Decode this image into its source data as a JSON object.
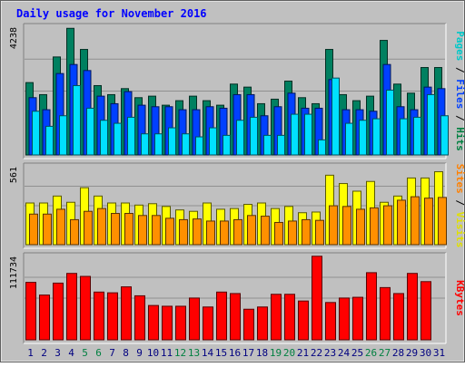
{
  "chart_data": {
    "type": "bar",
    "title": "Daily usage for November 2016",
    "categories": [
      "1",
      "2",
      "3",
      "4",
      "5",
      "6",
      "7",
      "8",
      "9",
      "10",
      "11",
      "12",
      "13",
      "14",
      "15",
      "16",
      "17",
      "18",
      "19",
      "20",
      "21",
      "22",
      "23",
      "24",
      "25",
      "26",
      "27",
      "28",
      "29",
      "30",
      "31"
    ],
    "weekend_days": [
      "5",
      "6",
      "12",
      "13",
      "19",
      "20",
      "26",
      "27"
    ],
    "panels": [
      {
        "name": "top",
        "max_label": "4238",
        "ylim": [
          0,
          4238
        ],
        "right_labels": [
          {
            "text": "Pages",
            "color": "#00c8c8"
          },
          {
            "text": " / ",
            "color": "#000000"
          },
          {
            "text": "Files",
            "color": "#0040ff"
          },
          {
            "text": " / ",
            "color": "#000000"
          },
          {
            "text": "Hits",
            "color": "#008040"
          }
        ],
        "series": [
          {
            "name": "Hits",
            "color": "#008060",
            "values": [
              2400,
              2000,
              3250,
              4200,
              3500,
              2300,
              2000,
              2200,
              1900,
              1950,
              1650,
              1800,
              1950,
              1800,
              1650,
              2350,
              2250,
              1700,
              1850,
              2450,
              1900,
              1700,
              3500,
              2000,
              1800,
              1950,
              3800,
              2350,
              2050,
              2900,
              2900
            ]
          },
          {
            "name": "Files",
            "color": "#0040ff",
            "values": [
              1900,
              1500,
              2700,
              3000,
              2800,
              1950,
              1700,
              2100,
              1650,
              1600,
              1600,
              1500,
              1500,
              1600,
              1550,
              2000,
              2000,
              1300,
              1600,
              2050,
              1550,
              1550,
              2500,
              1500,
              1500,
              1450,
              3000,
              1600,
              1500,
              2250,
              2200
            ]
          },
          {
            "name": "Pages",
            "color": "#00e0ff",
            "values": [
              1450,
              950,
              1300,
              2300,
              1550,
              1150,
              1050,
              1250,
              700,
              700,
              900,
              700,
              600,
              900,
              650,
              1150,
              1250,
              650,
              650,
              1350,
              1350,
              500,
              2550,
              1050,
              1150,
              1200,
              2150,
              1200,
              1250,
              2000,
              1300
            ]
          }
        ]
      },
      {
        "name": "middle",
        "max_label": "561",
        "ylim": [
          0,
          561
        ],
        "right_labels": [
          {
            "text": "Sites",
            "color": "#ff8000"
          },
          {
            "text": " / ",
            "color": "#000000"
          },
          {
            "text": "Visits",
            "color": "#e0e000"
          }
        ],
        "series": [
          {
            "name": "Visits",
            "color": "#ffff00",
            "values": [
              300,
              300,
              350,
              305,
              410,
              350,
              300,
              300,
              285,
              295,
              275,
              250,
              240,
              300,
              255,
              260,
              290,
              300,
              260,
              275,
              230,
              235,
              500,
              440,
              385,
              455,
              305,
              350,
              480,
              480,
              525
            ]
          },
          {
            "name": "Sites",
            "color": "#ff9000",
            "values": [
              220,
              220,
              255,
              180,
              240,
              260,
              225,
              225,
              210,
              210,
              190,
              180,
              185,
              170,
              170,
              180,
              210,
              205,
              160,
              170,
              180,
              175,
              280,
              275,
              255,
              265,
              280,
              320,
              345,
              335,
              340
            ]
          }
        ]
      },
      {
        "name": "bottom",
        "max_label": "111734",
        "ylim": [
          0,
          111734
        ],
        "right_labels": [
          {
            "text": "KBytes",
            "color": "#ff0000"
          }
        ],
        "series": [
          {
            "name": "KBytes",
            "color": "#ff0000",
            "values": [
              77000,
              60000,
              76000,
              89000,
              85000,
              64000,
              63000,
              71000,
              59000,
              46000,
              45000,
              45000,
              56000,
              44000,
              64000,
              62000,
              41000,
              44000,
              61000,
              61000,
              52000,
              112000,
              50000,
              56000,
              57000,
              90000,
              70000,
              62000,
              89000,
              78000,
              0
            ]
          }
        ]
      }
    ]
  },
  "colors": {
    "background": "#c0c0c0",
    "frame": "#808080",
    "title": "#0000ff",
    "day_label": "#000080",
    "weekend_label": "#008040",
    "panel_bg": "#c0c0c0"
  }
}
